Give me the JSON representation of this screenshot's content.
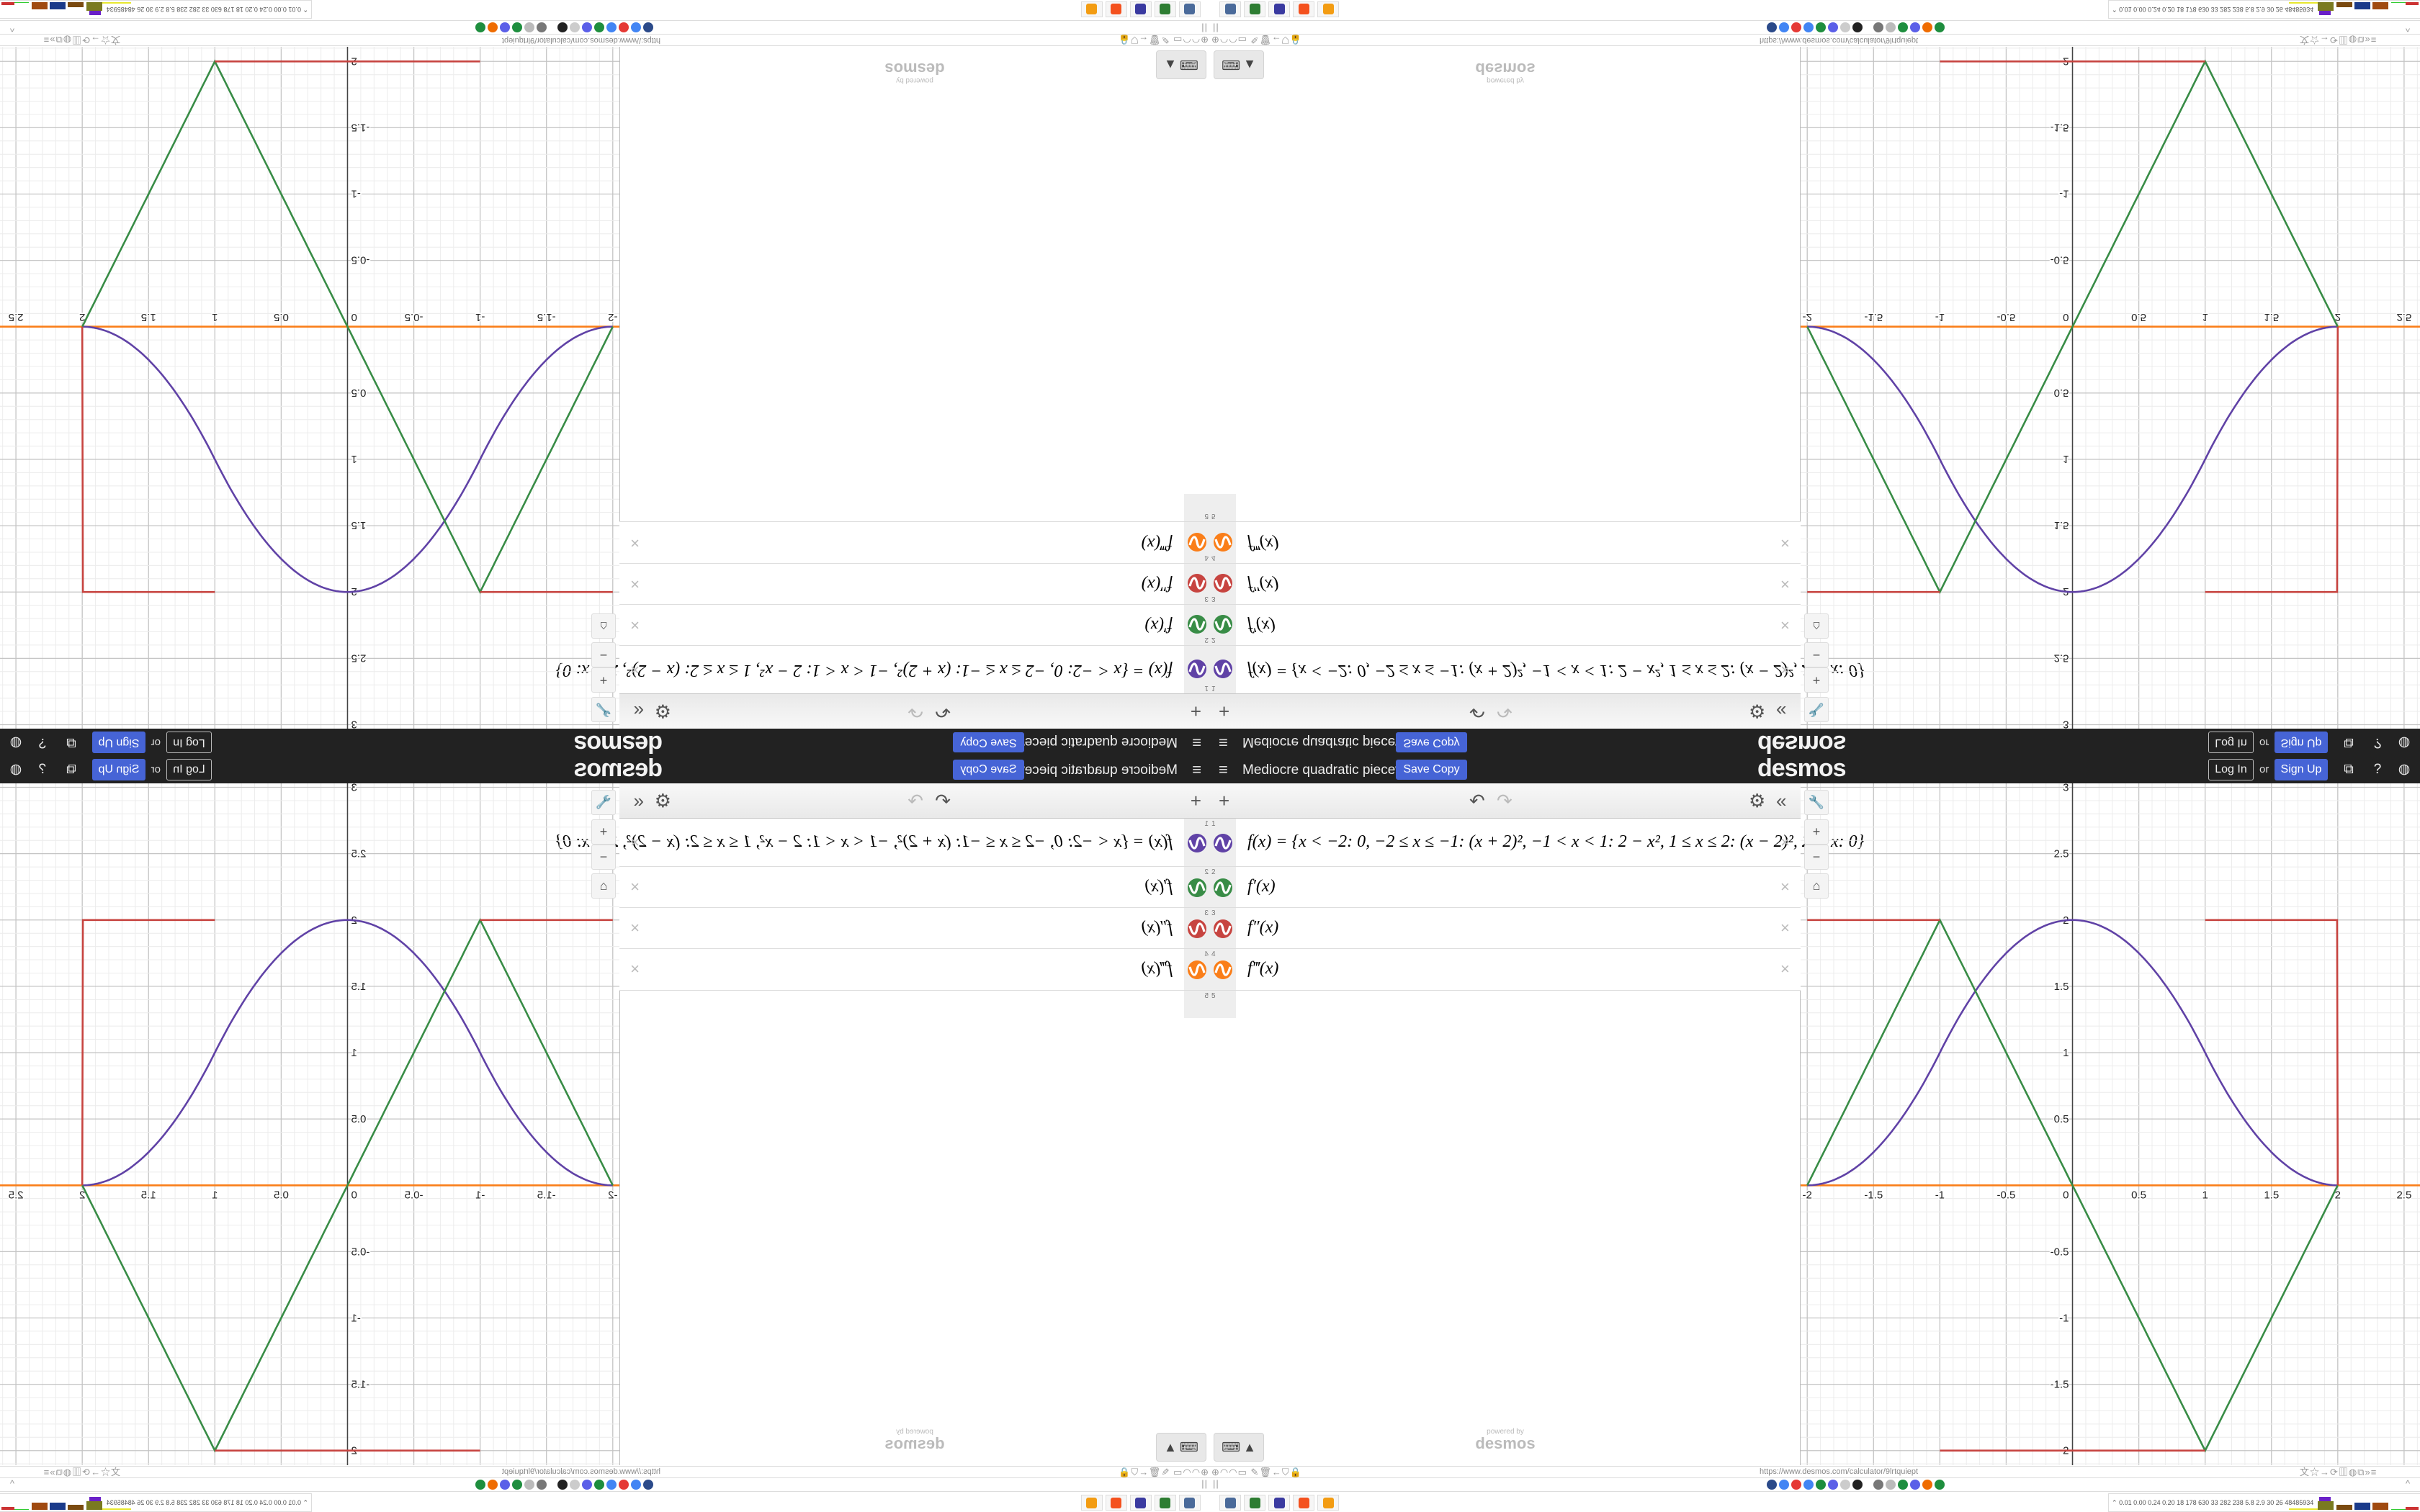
{
  "header": {
    "menu_icon": "hamburger-icon",
    "title": "Mediocre quadratic piecewi...",
    "save_copy": "Save Copy",
    "logo": "desmos",
    "log_in": "Log In",
    "or": "or",
    "sign_up": "Sign Up",
    "icons": [
      "share-icon",
      "help-icon",
      "language-icon"
    ]
  },
  "toolbar": {
    "add": "+",
    "undo": "↶",
    "redo": "↷",
    "settings": "⚙",
    "collapse": "«"
  },
  "expressions": [
    {
      "index": "1",
      "latex": "f(x) = {x < −2: 0, −2 ≤ x ≤ −1: (x + 2)², −1 < x < 1: 2 − x², 1 ≤ x ≤ 2: (x − 2)², 2 < x: 0}",
      "color": "#6042a6"
    },
    {
      "index": "2",
      "latex": "f′(x)",
      "color": "#388c46"
    },
    {
      "index": "3",
      "latex": "f″(x)",
      "color": "#c74440"
    },
    {
      "index": "4",
      "latex": "f‴(x)",
      "color": "#fa7e19"
    },
    {
      "index": "5",
      "latex": "",
      "color": ""
    }
  ],
  "delete_glyph": "×",
  "powered_by": {
    "small": "powered by",
    "logo": "desmos"
  },
  "keyboard": {
    "icon": "keyboard-icon",
    "arrow": "▲"
  },
  "graph": {
    "x_ticks": [
      "-2",
      "-1.5",
      "-1",
      "-0.5",
      "0.5",
      "1",
      "1.5",
      "2",
      "2.5"
    ],
    "y_ticks": [
      "3",
      "2.5",
      "2",
      "1.5",
      "1",
      "0.5",
      "-0.5",
      "-1",
      "-1.5",
      "-2"
    ],
    "origin_label": "0",
    "x_range": [
      -2.05,
      2.62
    ],
    "y_range": [
      -2.11,
      3.03
    ],
    "minor_grid": 0.1,
    "major_grid": 0.5,
    "tools": [
      "wrench-icon",
      "zoom-in-icon",
      "zoom-out-icon",
      "home-icon"
    ]
  },
  "browser": {
    "url": "https://www.desmos.com/calculator/9lrtquiept",
    "left_icons": "⊕◠◠▭ ✎🗑←⛉🔒",
    "right_icons": "文☆→⟳▥◍⧉»≡",
    "bookmarks_left": "||",
    "bookmarks_right": "^",
    "bookmark_colors": [
      "#2b4a8a",
      "#4285f4",
      "#e53935",
      "#4285f4",
      "#1e8e3e",
      "#5b5fe8",
      "#cccccc",
      "#222222",
      "#777777",
      "#bbbbbb",
      "#1e8e3e",
      "#5b5fe8",
      "#ef6c00",
      "#1e8e3e"
    ]
  },
  "taskbar": {
    "app_colors": [
      "#4a6a9a",
      "#2e7d32",
      "#3a3aa0",
      "#f4511e",
      "#f39c12"
    ],
    "stats": "0.01 0.00 0.24 0.20  18  178  630  33  282  238  5.8  2.9  30  26  48485934",
    "stats_icon": "⌃"
  }
}
